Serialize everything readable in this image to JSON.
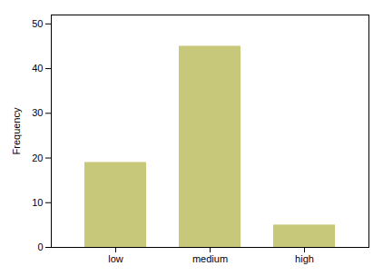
{
  "chart_data": {
    "type": "bar",
    "categories": [
      "low",
      "medium",
      "high"
    ],
    "values": [
      19,
      45,
      5
    ],
    "color": "#c8c87a",
    "ylabel": "Frequency",
    "ylim": [
      0,
      52
    ],
    "yticks": [
      0,
      10,
      20,
      30,
      40,
      50
    ],
    "grid": false
  }
}
